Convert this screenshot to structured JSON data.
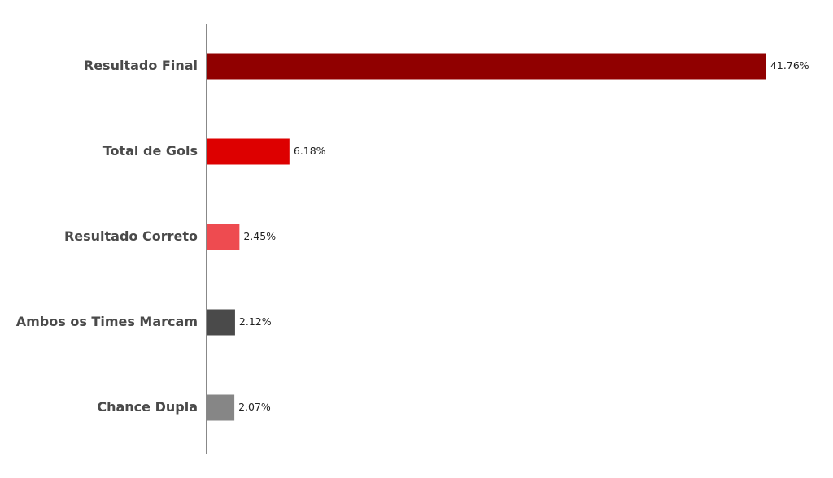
{
  "chart_data": {
    "type": "hbar",
    "categories": [
      "Resultado Final",
      "Total de Gols",
      "Resultado Correto",
      "Ambos os Times Marcam",
      "Chance Dupla"
    ],
    "values": [
      41.76,
      6.18,
      2.45,
      2.12,
      2.07
    ],
    "value_labels": [
      "41.76%",
      "6.18%",
      "2.45%",
      "2.12%",
      "2.07%"
    ],
    "colors": [
      "#900000",
      "#dd0000",
      "#ee4b50",
      "#4a4a4a",
      "#868686"
    ]
  }
}
